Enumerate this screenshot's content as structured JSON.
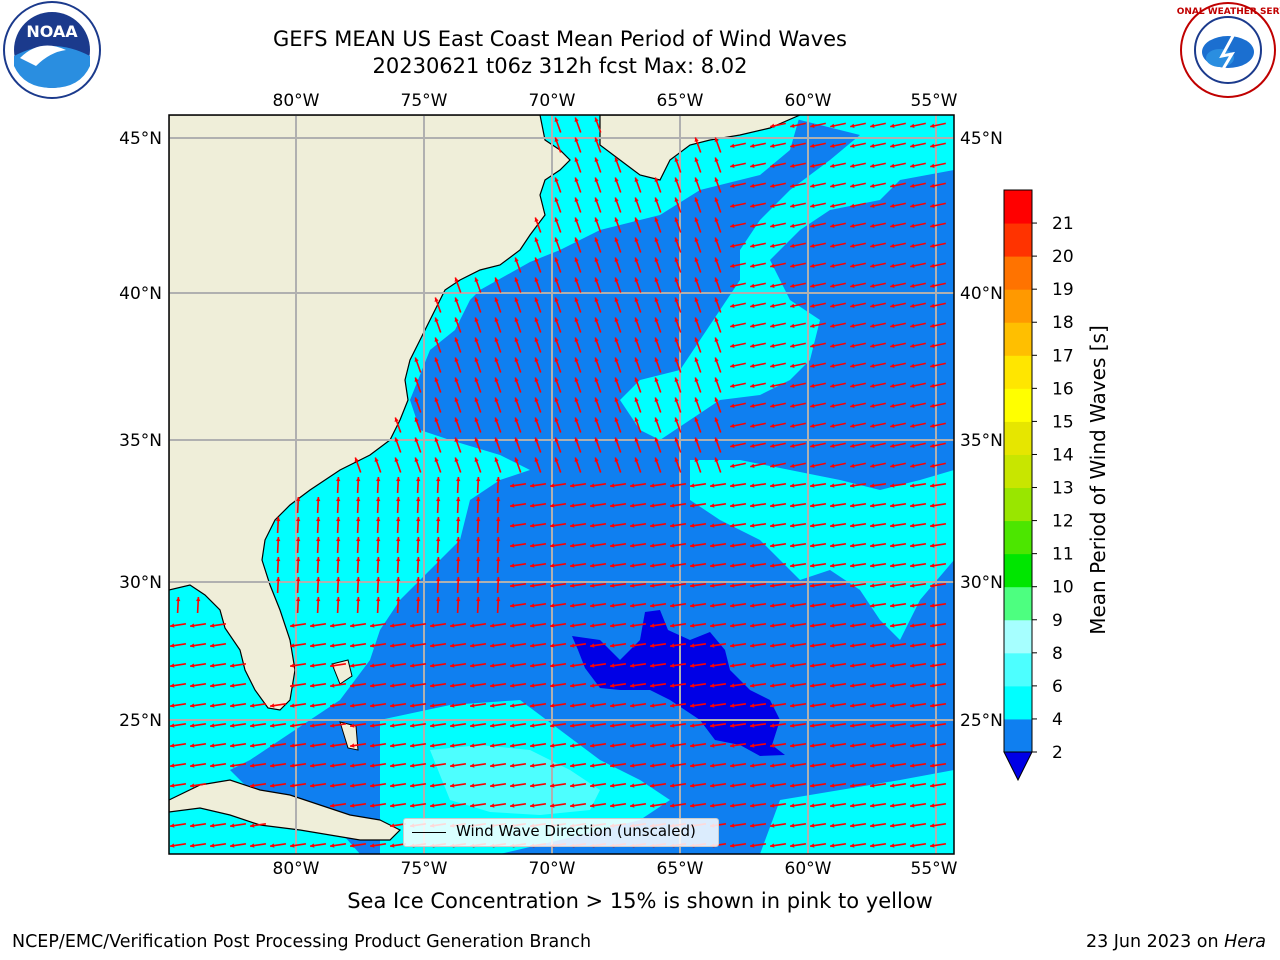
{
  "title": {
    "line1": "GEFS MEAN US East Coast Mean Period of Wind Waves",
    "line2": "20230621 t06z 312h fcst   Max: 8.02"
  },
  "logos": {
    "left": {
      "icon": "noaa-logo",
      "text": "NOAA"
    },
    "right": {
      "icon": "nws-logo",
      "text": "NATIONAL WEATHER SERVICE"
    }
  },
  "colors": {
    "land": "#efeed9",
    "lt2": "#0000e6",
    "c2_4": "#0f7ff0",
    "c4_6": "#00ffff",
    "c6_8": "#4dffff",
    "arrows": "#ff0000",
    "grid": "#b0b0b0"
  },
  "chart_data": {
    "type": "heatmap",
    "title": "GEFS MEAN US East Coast Mean Period of Wind Waves",
    "subtitle": "20230621 t06z 312h fcst   Max: 8.02",
    "variable": "Mean Period of Wind Waves [s]",
    "max_value": 8.02,
    "xlim": [
      -85,
      -54.5
    ],
    "ylim": [
      20.5,
      46
    ],
    "x_ticks": [
      "80°W",
      "75°W",
      "70°W",
      "65°W",
      "60°W",
      "55°W"
    ],
    "y_ticks": [
      "45°N",
      "40°N",
      "35°N",
      "30°N",
      "25°N"
    ],
    "colorbar": {
      "label": "Mean Period of Wind Waves [s]",
      "ticks": [
        "2",
        "4",
        "6",
        "8",
        "9",
        "10",
        "11",
        "12",
        "13",
        "14",
        "15",
        "16",
        "17",
        "18",
        "19",
        "20",
        "21"
      ],
      "extend": "min",
      "colors": [
        "#0f7ff0",
        "#00ffff",
        "#4dffff",
        "#a6ffff",
        "#4dff80",
        "#00e600",
        "#4ce600",
        "#99e600",
        "#c8e600",
        "#e6e600",
        "#ffff00",
        "#ffe600",
        "#ffbf00",
        "#ff9900",
        "#ff7300",
        "#ff3300",
        "#ff0000"
      ],
      "under_color": "#0000e6"
    },
    "legend": {
      "label": "Wind Wave Direction (unscaled)",
      "position": "bottom-center"
    },
    "grid": true
  },
  "caption": "Sea Ice Concentration > 15% is shown in pink to yellow",
  "footer": {
    "left": "NCEP/EMC/Verification Post Processing Product Generation Branch",
    "right_date": "23 Jun 2023 on ",
    "right_host": "Hera"
  }
}
